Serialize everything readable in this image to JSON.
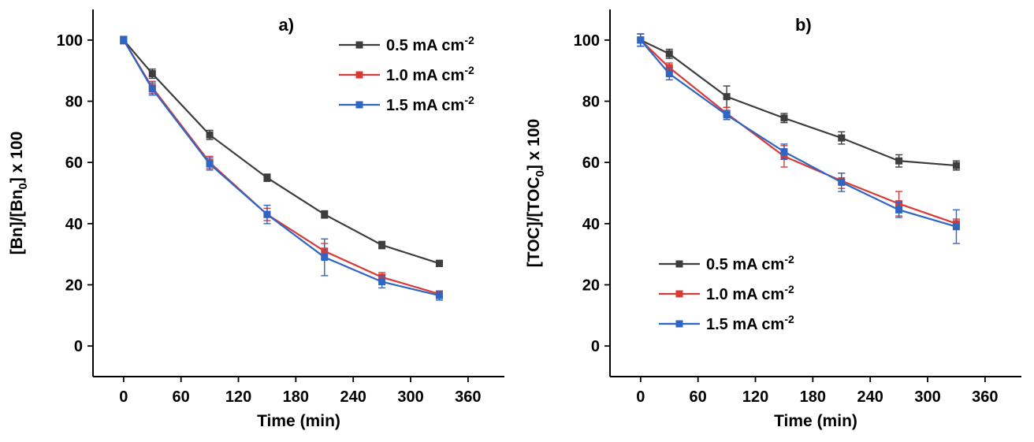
{
  "page": {
    "background": "#ffffff",
    "axis_color": "#000000"
  },
  "chart_data": [
    {
      "type": "line",
      "panel_label": "a)",
      "xlabel": "Time (min)",
      "ylabel": {
        "pre": "[Bn]/[Bn",
        "sub": "0",
        "post": "] x 100"
      },
      "x": [
        0,
        30,
        90,
        150,
        210,
        270,
        330
      ],
      "xticks": [
        0,
        60,
        120,
        180,
        240,
        300,
        360
      ],
      "yticks": [
        0,
        20,
        40,
        60,
        80,
        100
      ],
      "xlim": [
        -32,
        398
      ],
      "ylim": [
        -10,
        110
      ],
      "grid": false,
      "legend": {
        "position": "top-right"
      },
      "series": [
        {
          "label": "0.5 mA cm",
          "label_sup": "-2",
          "color": "#3d3d3d",
          "marker": "square",
          "values": [
            100,
            89,
            69,
            55,
            43,
            33,
            27
          ],
          "errors": [
            1.2,
            1.5,
            1.5,
            1.2,
            1.2,
            1.2,
            1.0
          ]
        },
        {
          "label": "1.0 mA cm",
          "label_sup": "-2",
          "color": "#d83b36",
          "marker": "square",
          "values": [
            100,
            84.5,
            60,
            43,
            31,
            22.5,
            17
          ],
          "errors": [
            1.2,
            2.0,
            2.0,
            2.0,
            2.5,
            1.5,
            1.0
          ]
        },
        {
          "label": "1.5 mA cm",
          "label_sup": "-2",
          "color": "#2f66c4",
          "marker": "square",
          "values": [
            100,
            84,
            59.5,
            43,
            29,
            21,
            16.5
          ],
          "errors": [
            1.2,
            2.0,
            2.0,
            3.0,
            6.0,
            2.0,
            1.5
          ]
        }
      ]
    },
    {
      "type": "line",
      "panel_label": "b)",
      "xlabel": "Time (min)",
      "ylabel": {
        "pre": "[TOC]/[TOC",
        "sub": "0",
        "post": "] x 100"
      },
      "x": [
        0,
        30,
        90,
        150,
        210,
        270,
        330
      ],
      "xticks": [
        0,
        60,
        120,
        180,
        240,
        300,
        360
      ],
      "yticks": [
        0,
        20,
        40,
        60,
        80,
        100
      ],
      "xlim": [
        -32,
        398
      ],
      "ylim": [
        -10,
        110
      ],
      "grid": false,
      "legend": {
        "position": "bottom-left"
      },
      "series": [
        {
          "label": "0.5 mA cm",
          "label_sup": "-2",
          "color": "#3d3d3d",
          "marker": "square",
          "values": [
            100,
            95.5,
            81.5,
            74.5,
            68,
            60.5,
            59
          ],
          "errors": [
            2.0,
            1.5,
            3.5,
            1.5,
            2.0,
            2.0,
            1.5
          ]
        },
        {
          "label": "1.0 mA cm",
          "label_sup": "-2",
          "color": "#d83b36",
          "marker": "square",
          "values": [
            100,
            91,
            76,
            62,
            54,
            46.5,
            40
          ],
          "errors": [
            2.0,
            1.5,
            2.0,
            3.5,
            2.5,
            4.0,
            1.5
          ]
        },
        {
          "label": "1.5 mA cm",
          "label_sup": "-2",
          "color": "#2f66c4",
          "marker": "square",
          "values": [
            100,
            89,
            75.5,
            63.5,
            53.5,
            44.5,
            39
          ],
          "errors": [
            2.0,
            2.0,
            1.5,
            2.5,
            3.0,
            2.5,
            5.5
          ]
        }
      ]
    }
  ]
}
